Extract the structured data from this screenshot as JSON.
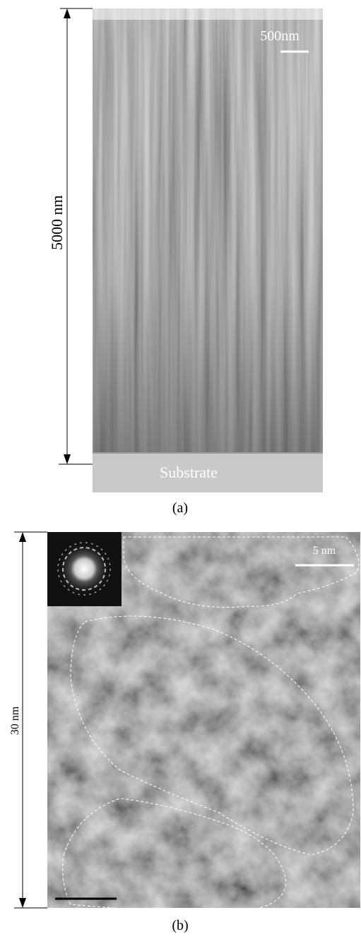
{
  "panel_a": {
    "height_label": "5000 nm",
    "scale_label": "500nm",
    "substrate_label": "Substrate",
    "caption": "(a)"
  },
  "panel_b": {
    "height_label": "30 nm",
    "scale_label": "5 nm",
    "caption": "(b)"
  }
}
